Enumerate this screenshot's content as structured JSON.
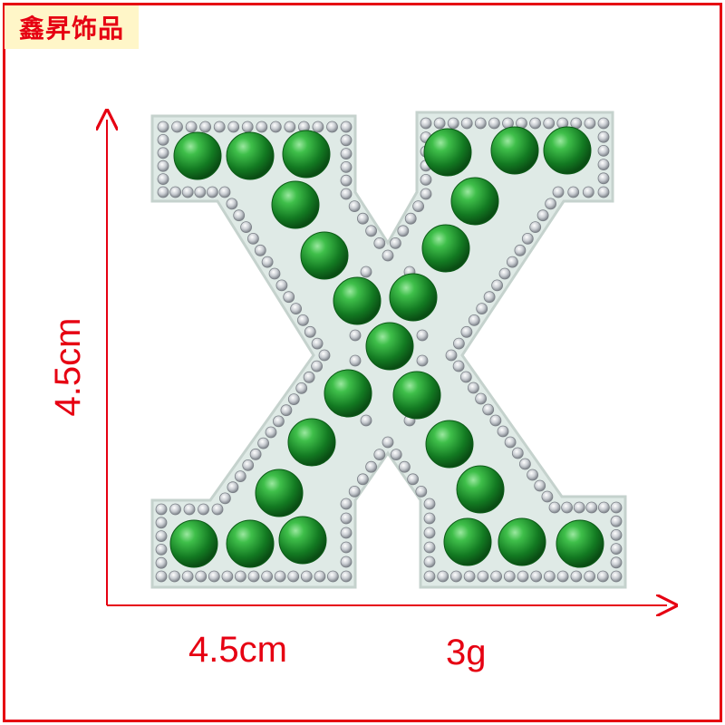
{
  "brand": {
    "label": "鑫昇饰品"
  },
  "product": {
    "letter": "X",
    "height_label": "4.5cm",
    "width_label": "4.5cm",
    "weight_label": "3g"
  },
  "colors": {
    "accent": "#e60012",
    "pearl": "#1e8f2a",
    "felt": "#dfeae6",
    "rhinestone": "#c8ccd0"
  }
}
